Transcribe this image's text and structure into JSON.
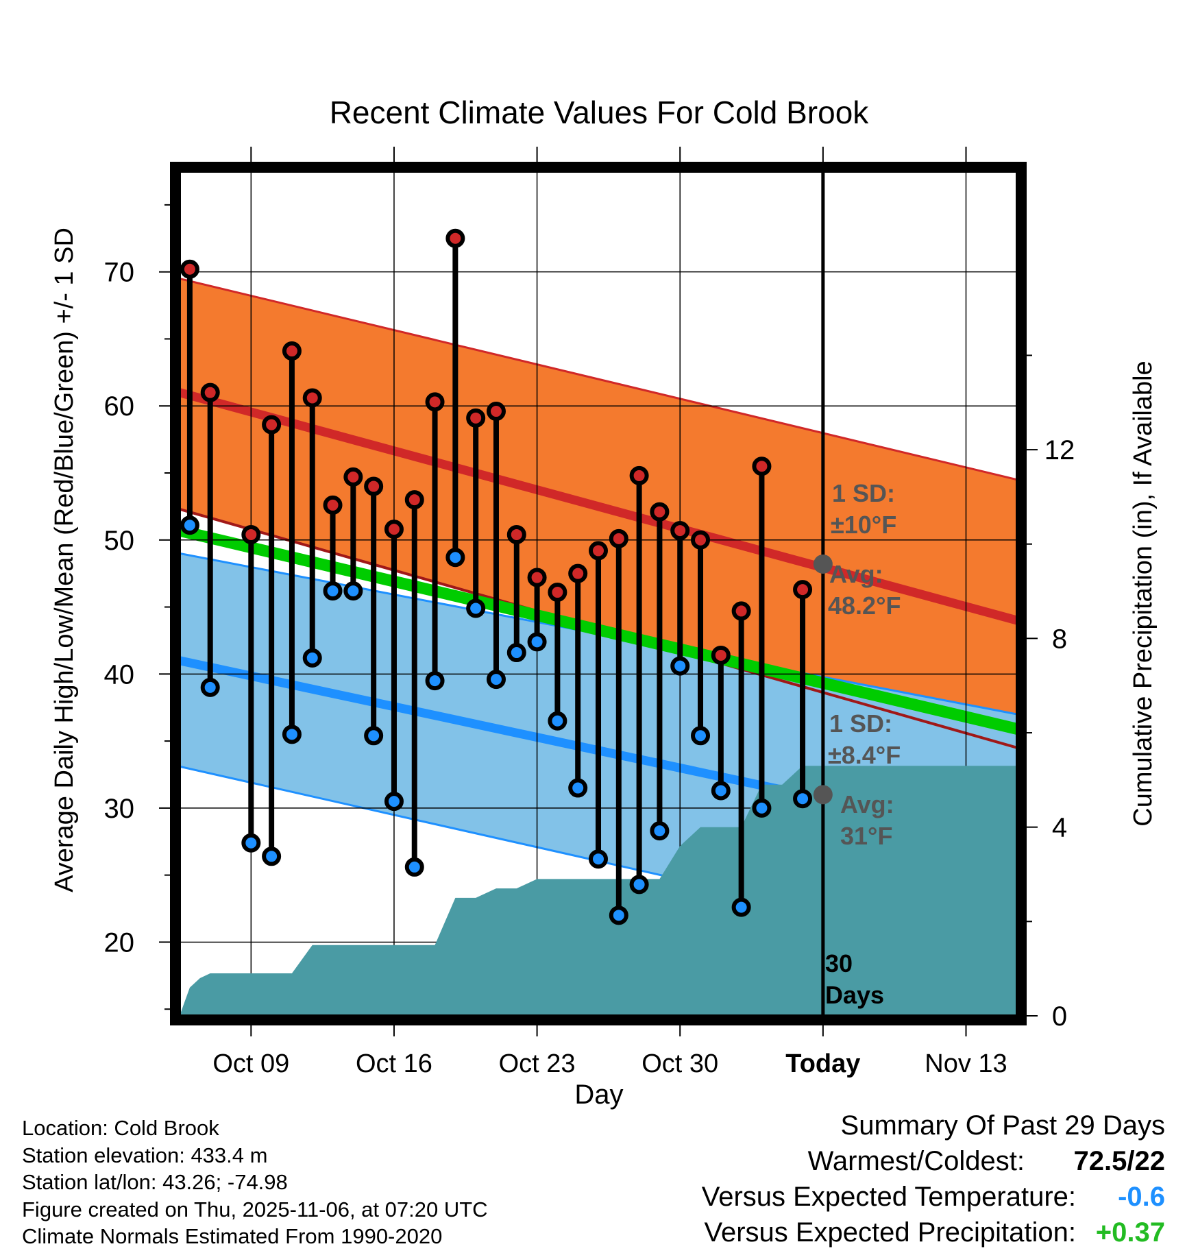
{
  "chart_data": {
    "type": "line",
    "title": "Recent Climate Values For Cold Brook",
    "xlabel": "Day",
    "ylabel": "Average Daily High/Low/Mean (Red/Blue/Green) +/- 1 SD",
    "y2label": "Cumulative Precipitation (in), If Available",
    "ylim": [
      14.5,
      77.5
    ],
    "y2lim": [
      0,
      17.9
    ],
    "yticks": [
      "20",
      "30",
      "40",
      "50",
      "60",
      "70"
    ],
    "y2ticks": [
      "0",
      "4",
      "8",
      "12"
    ],
    "xlim": [
      5.5,
      46.5
    ],
    "xticks": [
      {
        "day": 9,
        "label": "Oct 09"
      },
      {
        "day": 16,
        "label": "Oct 16"
      },
      {
        "day": 23,
        "label": "Oct 23"
      },
      {
        "day": 30,
        "label": "Oct 30"
      },
      {
        "day": 37,
        "label": "Today"
      },
      {
        "day": 44,
        "label": "Nov 13"
      }
    ],
    "today_day": 37,
    "normals": {
      "high_avg": [
        61.0,
        44.0
      ],
      "high_upper": [
        69.5,
        54.5
      ],
      "high_lower": [
        52.3,
        34.5
      ],
      "low_avg": [
        41.0,
        27.6
      ],
      "low_upper": [
        49.0,
        37.0
      ],
      "low_lower": [
        33.1,
        19.0
      ],
      "mean_avg": [
        50.7,
        35.9
      ]
    },
    "series": [
      {
        "name": "Daily High",
        "days": [
          6,
          7,
          8,
          9,
          10,
          11,
          12,
          13,
          14,
          15,
          16,
          17,
          18,
          19,
          20,
          21,
          22,
          23,
          24,
          25,
          26,
          27,
          28,
          29,
          30,
          31,
          32,
          33,
          34,
          35,
          36
        ],
        "values": [
          70.2,
          61.0,
          null,
          50.4,
          58.6,
          64.1,
          60.6,
          52.6,
          54.7,
          54.0,
          50.8,
          53.0,
          60.3,
          72.5,
          59.1,
          59.6,
          50.4,
          47.2,
          46.1,
          47.5,
          49.2,
          50.1,
          54.8,
          52.1,
          50.7,
          50.0,
          41.4,
          44.7,
          55.5,
          null,
          46.3
        ]
      },
      {
        "name": "Daily Low",
        "days": [
          6,
          7,
          8,
          9,
          10,
          11,
          12,
          13,
          14,
          15,
          16,
          17,
          18,
          19,
          20,
          21,
          22,
          23,
          24,
          25,
          26,
          27,
          28,
          29,
          30,
          31,
          32,
          33,
          34,
          35,
          36
        ],
        "values": [
          51.1,
          39.0,
          null,
          27.4,
          26.4,
          35.5,
          41.2,
          46.2,
          46.2,
          35.4,
          30.5,
          25.6,
          39.5,
          48.7,
          44.9,
          39.6,
          41.6,
          42.4,
          36.5,
          31.5,
          26.2,
          22.0,
          24.3,
          28.3,
          40.6,
          35.4,
          31.3,
          22.6,
          30.0,
          null,
          30.7
        ]
      },
      {
        "name": "Cumulative Precipitation (in)",
        "days": [
          5.5,
          6,
          6.5,
          7,
          8,
          9,
          10,
          11,
          12,
          13,
          14,
          15,
          16,
          17,
          18,
          19,
          20,
          21,
          22,
          23,
          24,
          25,
          26,
          27,
          28,
          29,
          30,
          31,
          32,
          33,
          34,
          35,
          36,
          37,
          46.5
        ],
        "values": [
          0,
          0.6,
          0.8,
          0.9,
          0.9,
          0.9,
          0.9,
          0.9,
          1.5,
          1.5,
          1.5,
          1.5,
          1.5,
          1.5,
          1.5,
          2.5,
          2.5,
          2.7,
          2.7,
          2.9,
          2.9,
          2.9,
          2.9,
          2.9,
          2.9,
          2.9,
          3.6,
          4.0,
          4.0,
          4.0,
          4.9,
          4.9,
          5.3,
          5.3,
          5.3
        ]
      }
    ],
    "markers": {
      "today_high_avg": 48.2,
      "today_low_avg": 31.0
    },
    "annotations": {
      "high_sd_line1": "1 SD:",
      "high_sd_line2": "±10°F",
      "high_avg_line1": "Avg:",
      "high_avg_line2": "48.2°F",
      "low_sd_line1": "1 SD:",
      "low_sd_line2": "±8.4°F",
      "low_avg_line1": "Avg:",
      "low_avg_line2": "31°F",
      "days_line1": "30",
      "days_line2": "Days"
    },
    "colors": {
      "high_band": "#f47a2e",
      "high_line": "#d02828",
      "low_band": "#82c2e8",
      "low_line": "#1e90ff",
      "mean_line": "#00cc00",
      "overlap": "#a01818",
      "precip": "#4a9ba4",
      "high_dot": "#d02828",
      "low_dot": "#1e90ff",
      "annotation": "#555555"
    }
  },
  "footer": {
    "location": "Location: Cold Brook",
    "elevation": "Station elevation: 433.4 m",
    "latlon": "Station lat/lon: 43.26; -74.98",
    "created": "Figure created on Thu, 2025-11-06, at 07:20 UTC",
    "normals": "Climate Normals Estimated From 1990-2020"
  },
  "summary": {
    "title": "Summary Of Past 29 Days",
    "warm_cold_label": "Warmest/Coldest:",
    "warm_cold_value": "72.5/22",
    "temp_label": "Versus Expected Temperature:",
    "temp_value": "-0.6",
    "temp_color": "#1e90ff",
    "precip_label": "Versus Expected Precipitation:",
    "precip_value": "+0.37",
    "precip_color": "#22bb22"
  }
}
